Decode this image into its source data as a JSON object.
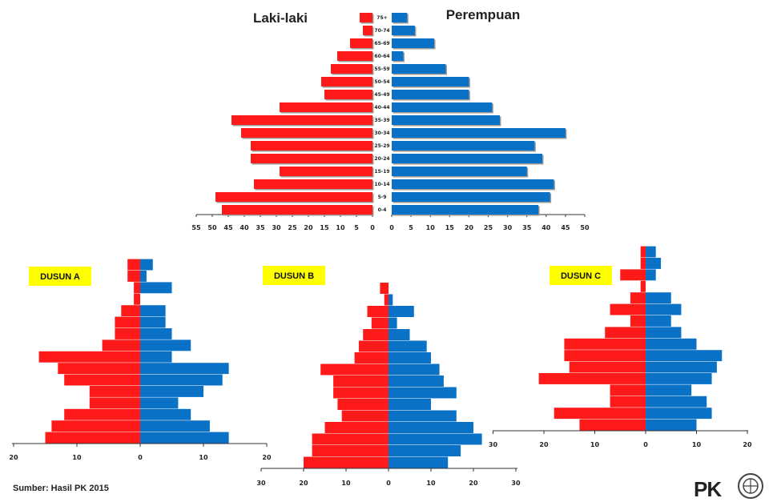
{
  "colors": {
    "male": "#ff1a1a",
    "female": "#0a72c6",
    "label_bg": "#ffff00"
  },
  "source_text": "Sumber: Hasil PK 2015",
  "logo_text": "PK",
  "chart_data": [
    {
      "id": "main",
      "type": "bar",
      "subtype": "population-pyramid",
      "left_title": "Laki-laki",
      "right_title": "Perempuan",
      "age_groups": [
        "0-4",
        "5-9",
        "10-14",
        "15-19",
        "20-24",
        "25-29",
        "30-34",
        "35-39",
        "40-44",
        "45-49",
        "50-54",
        "55-59",
        "60-64",
        "65-69",
        "70-74",
        "75+"
      ],
      "series": [
        {
          "name": "Laki-laki",
          "values": [
            47,
            49,
            37,
            29,
            38,
            38,
            41,
            44,
            29,
            15,
            16,
            13,
            11,
            7,
            3,
            4
          ]
        },
        {
          "name": "Perempuan",
          "values": [
            38,
            41,
            42,
            35,
            39,
            37,
            45,
            28,
            26,
            20,
            20,
            14,
            3,
            11,
            6,
            4
          ]
        }
      ],
      "left_ticks": [
        "55",
        "50",
        "45",
        "40",
        "35",
        "30",
        "25",
        "20",
        "15",
        "10",
        "5",
        "0"
      ],
      "right_ticks": [
        "0",
        "5",
        "10",
        "15",
        "20",
        "25",
        "30",
        "35",
        "40",
        "45",
        "50"
      ],
      "xlim": [
        0,
        55
      ]
    },
    {
      "id": "dusun_a",
      "type": "bar",
      "subtype": "population-pyramid",
      "label": "DUSUN A",
      "series": [
        {
          "name": "Laki-laki",
          "values": [
            15,
            14,
            12,
            8,
            8,
            12,
            13,
            16,
            6,
            4,
            4,
            3,
            1,
            1,
            2,
            2
          ]
        },
        {
          "name": "Perempuan",
          "values": [
            14,
            11,
            8,
            6,
            10,
            13,
            14,
            5,
            8,
            5,
            4,
            4,
            0,
            5,
            1,
            2
          ]
        }
      ],
      "ticks": [
        "20",
        "10",
        "0",
        "10",
        "20"
      ],
      "xlim": [
        0,
        20
      ]
    },
    {
      "id": "dusun_b",
      "type": "bar",
      "subtype": "population-pyramid",
      "label": "DUSUN B",
      "series": [
        {
          "name": "Laki-laki",
          "values": [
            20,
            18,
            18,
            15,
            11,
            12,
            13,
            13,
            16,
            8,
            7,
            6,
            4,
            5,
            1,
            2
          ]
        },
        {
          "name": "Perempuan",
          "values": [
            14,
            17,
            22,
            20,
            16,
            10,
            16,
            13,
            12,
            10,
            9,
            5,
            2,
            6,
            1,
            0
          ]
        }
      ],
      "ticks": [
        "30",
        "20",
        "10",
        "0",
        "10",
        "20",
        "30"
      ],
      "xlim": [
        0,
        30
      ]
    },
    {
      "id": "dusun_c",
      "type": "bar",
      "subtype": "population-pyramid",
      "label": "DUSUN C",
      "series": [
        {
          "name": "Laki-laki",
          "values": [
            13,
            18,
            7,
            7,
            21,
            15,
            16,
            16,
            8,
            3,
            7,
            3,
            1,
            5,
            1,
            1
          ]
        },
        {
          "name": "Perempuan",
          "values": [
            10,
            13,
            12,
            9,
            13,
            14,
            15,
            10,
            7,
            5,
            7,
            5,
            0,
            2,
            3,
            2
          ]
        }
      ],
      "ticks": [
        "30",
        "20",
        "10",
        "0",
        "10",
        "20"
      ],
      "xlim": [
        0,
        30
      ]
    }
  ]
}
